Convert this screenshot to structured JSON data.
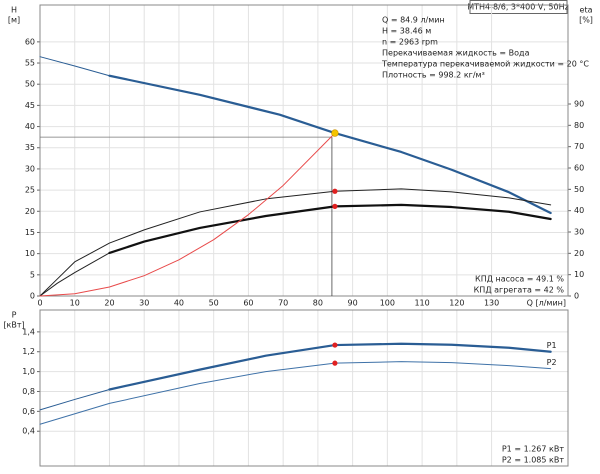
{
  "chart_data": [
    {
      "type": "line",
      "info_box": "MTH4-8/6, 3*400 V, 50Hz",
      "info_lines": [
        "Q = 84.9 л/мин",
        "H = 38.46 м",
        "n = 2963 rpm",
        "Перекачиваемая жидкость = Вода",
        "Температура перекачиваемой жидкости = 20 °C",
        "Плотность = 998.2 кг/м³"
      ],
      "ylabel": [
        "H",
        "[м]"
      ],
      "y2label": [
        "eta",
        "[%]"
      ],
      "xlabel": "Q [л/мин]",
      "annotations": [
        "КПД насоса = 49.1 %",
        "КПД агрегата = 42 %"
      ],
      "xlim": [
        0,
        152
      ],
      "xticks": [
        0,
        10,
        20,
        30,
        40,
        50,
        60,
        70,
        80,
        90,
        100,
        110,
        120,
        130
      ],
      "ylim": [
        0,
        68.7
      ],
      "yticks": [
        0,
        5,
        10,
        15,
        20,
        25,
        30,
        35,
        40,
        45,
        50,
        55,
        60
      ],
      "y2lim": [
        0,
        136.4
      ],
      "y2ticks": [
        0,
        10,
        20,
        30,
        40,
        50,
        60,
        70,
        80,
        90
      ],
      "grid": true,
      "series": [
        {
          "color": "#2a5d94",
          "style": "thin",
          "x": [
            0,
            10,
            20
          ],
          "values": [
            56.5,
            54.3,
            52
          ]
        },
        {
          "color": "#2a5d94",
          "style": "thick",
          "x": [
            20,
            46,
            69,
            84.9,
            104,
            118.5,
            135,
            147
          ],
          "values": [
            52,
            47.5,
            42.8,
            38.46,
            34,
            29.8,
            24.5,
            19.6
          ]
        },
        {
          "color": "#222222",
          "style": "thin",
          "axis": "y2",
          "x": [
            0,
            5,
            10,
            20,
            30,
            46,
            65,
            84.9,
            104,
            118.5,
            135,
            147
          ],
          "values": [
            0,
            8,
            16,
            24.8,
            31,
            39.4,
            45.5,
            49.1,
            50.2,
            48.8,
            46,
            42.7
          ]
        },
        {
          "color": "#222222",
          "style": "thin",
          "axis": "y2",
          "x": [
            0,
            5,
            10,
            20
          ],
          "values": [
            0,
            6,
            11,
            20.2
          ]
        },
        {
          "color": "#111111",
          "style": "thick",
          "axis": "y2",
          "x": [
            20,
            30,
            46,
            65,
            84.9,
            104,
            118.5,
            135,
            147
          ],
          "values": [
            20.2,
            25.5,
            31.9,
            37.5,
            42,
            42.7,
            41.7,
            39.5,
            36.1
          ]
        },
        {
          "color": "#e84a4a",
          "style": "thin",
          "x": [
            0,
            10,
            20,
            30,
            40,
            50,
            60,
            70,
            84.9
          ],
          "values": [
            0,
            0.53,
            2.13,
            4.8,
            8.54,
            13.3,
            19.2,
            26.1,
            38.46
          ]
        },
        {
          "color": "#f5c400",
          "style": "point",
          "x": [
            84.9
          ],
          "values": [
            38.46
          ]
        },
        {
          "color": "#e02020",
          "style": "point",
          "axis": "y2",
          "x": [
            84.9,
            84.9
          ],
          "values": [
            49.1,
            42
          ]
        }
      ]
    },
    {
      "type": "line",
      "ylabel": [
        "P",
        "[кВт]"
      ],
      "annotations": [
        "P1 = 1.267 кВт",
        "P2 = 1.085 кВт"
      ],
      "xlim": [
        0,
        152
      ],
      "xticks": [
        0,
        10,
        20,
        30,
        40,
        50,
        60,
        70,
        80,
        90,
        100,
        110,
        120,
        130
      ],
      "ylim": [
        0.05,
        1.62
      ],
      "yticks": [
        {
          "value": 0.4,
          "label": "0,4"
        },
        {
          "value": 0.6,
          "label": "0,6"
        },
        {
          "value": 0.8,
          "label": "0,8"
        },
        {
          "value": 1.0,
          "label": "1,0"
        },
        {
          "value": 1.2,
          "label": "1,2"
        },
        {
          "value": 1.4,
          "label": "1,4"
        }
      ],
      "grid": true,
      "series": [
        {
          "color": "#2a5d94",
          "style": "thin",
          "x": [
            0,
            10,
            20
          ],
          "values": [
            0.615,
            0.72,
            0.82
          ]
        },
        {
          "name": "P1",
          "color": "#2a5d94",
          "style": "thick",
          "x": [
            20,
            46,
            65,
            84.9,
            104,
            118.5,
            135,
            147
          ],
          "values": [
            0.82,
            1.02,
            1.16,
            1.267,
            1.28,
            1.27,
            1.24,
            1.2
          ]
        },
        {
          "name": "P2",
          "color": "#3f72a8",
          "style": "thin",
          "x": [
            0,
            20,
            46,
            65,
            84.9,
            104,
            118.5,
            135,
            147
          ],
          "values": [
            0.47,
            0.68,
            0.88,
            1.0,
            1.085,
            1.1,
            1.09,
            1.06,
            1.03
          ]
        },
        {
          "color": "#e02020",
          "style": "point",
          "x": [
            84.9,
            84.9
          ],
          "values": [
            1.267,
            1.085
          ]
        }
      ]
    }
  ]
}
